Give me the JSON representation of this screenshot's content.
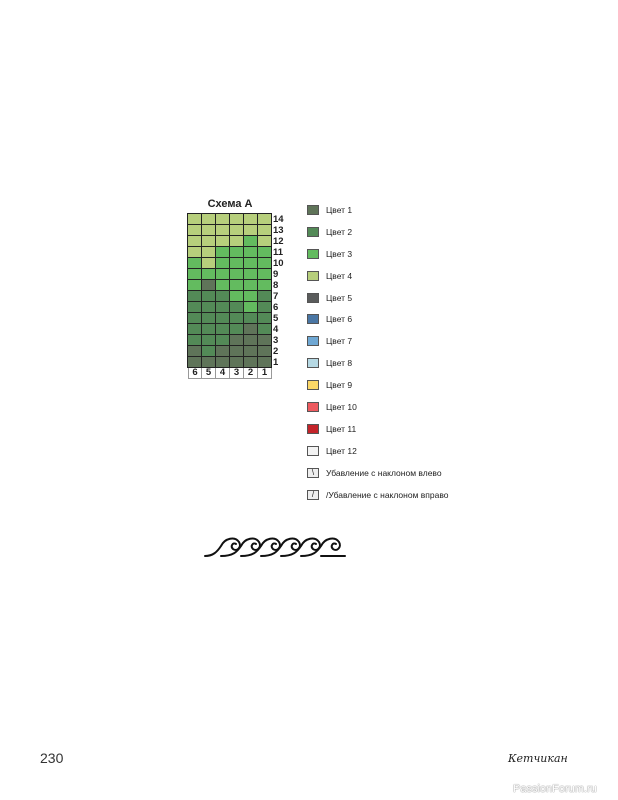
{
  "chart": {
    "title": "Схема А",
    "column_numbers": [
      "6",
      "5",
      "4",
      "3",
      "2",
      "1"
    ],
    "row_numbers": [
      "14",
      "13",
      "12",
      "11",
      "10",
      "9",
      "8",
      "7",
      "6",
      "5",
      "4",
      "3",
      "2",
      "1"
    ],
    "rows": [
      [
        4,
        4,
        4,
        4,
        4,
        4
      ],
      [
        4,
        4,
        4,
        4,
        4,
        4
      ],
      [
        4,
        4,
        4,
        4,
        3,
        4
      ],
      [
        4,
        4,
        3,
        3,
        3,
        3
      ],
      [
        3,
        4,
        3,
        3,
        3,
        3
      ],
      [
        3,
        3,
        3,
        3,
        3,
        3
      ],
      [
        3,
        1,
        3,
        3,
        3,
        3
      ],
      [
        2,
        2,
        2,
        3,
        3,
        2
      ],
      [
        2,
        2,
        2,
        2,
        3,
        2
      ],
      [
        2,
        2,
        2,
        2,
        2,
        2
      ],
      [
        2,
        2,
        2,
        2,
        1,
        2
      ],
      [
        2,
        2,
        2,
        1,
        1,
        1
      ],
      [
        1,
        2,
        1,
        1,
        1,
        1
      ],
      [
        1,
        1,
        1,
        1,
        1,
        1
      ]
    ]
  },
  "legend": [
    {
      "label": "Цвет 1",
      "color": "#5f7459"
    },
    {
      "label": "Цвет 2",
      "color": "#538a57"
    },
    {
      "label": "Цвет 3",
      "color": "#63bb5f"
    },
    {
      "label": "Цвет 4",
      "color": "#b7cf7c"
    },
    {
      "label": "Цвет 5",
      "color": "#5a5c5c"
    },
    {
      "label": "Цвет 6",
      "color": "#4a76a4"
    },
    {
      "label": "Цвет 7",
      "color": "#6fa8d4"
    },
    {
      "label": "Цвет 8",
      "color": "#b6d9e4"
    },
    {
      "label": "Цвет 9",
      "color": "#fcd867"
    },
    {
      "label": "Цвет 10",
      "color": "#ee5a5f"
    },
    {
      "label": "Цвет 11",
      "color": "#c4242a"
    },
    {
      "label": "Цвет 12",
      "color": "#f3f3f3"
    },
    {
      "label": "Убавление с наклоном влево",
      "symbol": "\\",
      "color": "#eeeeee"
    },
    {
      "label": "/Убавление с наклоном вправо",
      "symbol": "/",
      "color": "#eeeeee"
    }
  ],
  "page_number": "230",
  "signature": "Кетчикан",
  "watermark": "PassionForum.ru"
}
